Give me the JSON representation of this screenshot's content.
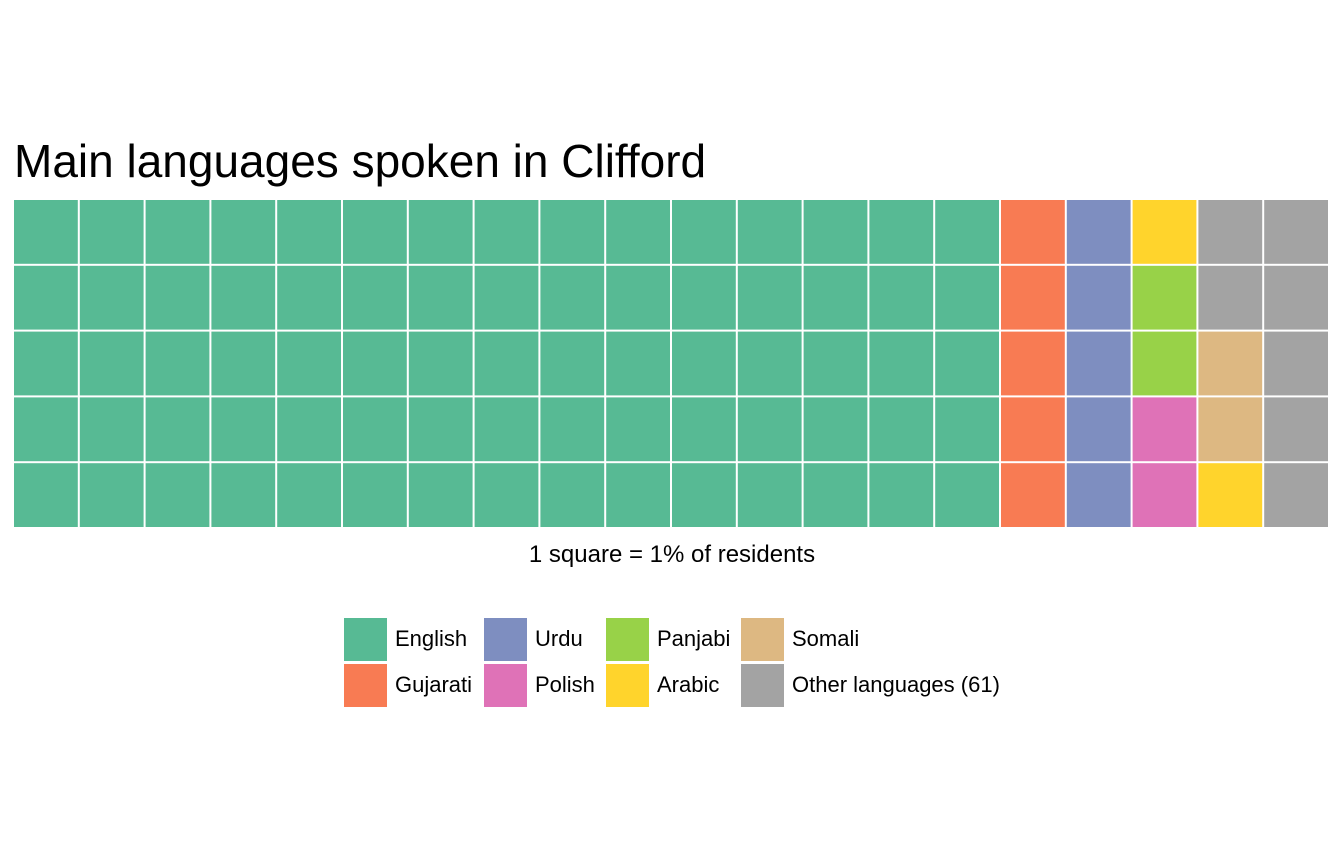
{
  "chart_data": {
    "type": "waffle",
    "title": "Main languages spoken in Clifford",
    "caption": "1 square = 1% of residents",
    "grid": {
      "rows": 5,
      "columns": 20
    },
    "legend_position": "bottom",
    "series": [
      {
        "name": "English",
        "value": 75,
        "color": "#57BA94"
      },
      {
        "name": "Gujarati",
        "value": 5,
        "color": "#F87B53"
      },
      {
        "name": "Urdu",
        "value": 5,
        "color": "#7E8EC0"
      },
      {
        "name": "Polish",
        "value": 2,
        "color": "#DF72B7"
      },
      {
        "name": "Panjabi",
        "value": 2,
        "color": "#98D248"
      },
      {
        "name": "Arabic",
        "value": 2,
        "color": "#FFD42C"
      },
      {
        "name": "Somali",
        "value": 2,
        "color": "#DDB882"
      },
      {
        "name": "Other languages (61)",
        "value": 7,
        "color": "#A3A3A3"
      }
    ],
    "cells": [
      "English",
      "English",
      "English",
      "English",
      "English",
      "English",
      "English",
      "English",
      "English",
      "English",
      "English",
      "English",
      "English",
      "English",
      "English",
      "Gujarati",
      "Urdu",
      "Arabic",
      "Other languages (61)",
      "Other languages (61)",
      "English",
      "English",
      "English",
      "English",
      "English",
      "English",
      "English",
      "English",
      "English",
      "English",
      "English",
      "English",
      "English",
      "English",
      "English",
      "Gujarati",
      "Urdu",
      "Panjabi",
      "Other languages (61)",
      "Other languages (61)",
      "English",
      "English",
      "English",
      "English",
      "English",
      "English",
      "English",
      "English",
      "English",
      "English",
      "English",
      "English",
      "English",
      "English",
      "English",
      "Gujarati",
      "Urdu",
      "Panjabi",
      "Somali",
      "Other languages (61)",
      "English",
      "English",
      "English",
      "English",
      "English",
      "English",
      "English",
      "English",
      "English",
      "English",
      "English",
      "English",
      "English",
      "English",
      "English",
      "Gujarati",
      "Urdu",
      "Polish",
      "Somali",
      "Other languages (61)",
      "English",
      "English",
      "English",
      "English",
      "English",
      "English",
      "English",
      "English",
      "English",
      "English",
      "English",
      "English",
      "English",
      "English",
      "English",
      "Gujarati",
      "Urdu",
      "Polish",
      "Arabic",
      "Other languages (61)"
    ],
    "legend_order": [
      "English",
      "Gujarati",
      "Urdu",
      "Polish",
      "Panjabi",
      "Arabic",
      "Somali",
      "Other languages (61)"
    ]
  }
}
